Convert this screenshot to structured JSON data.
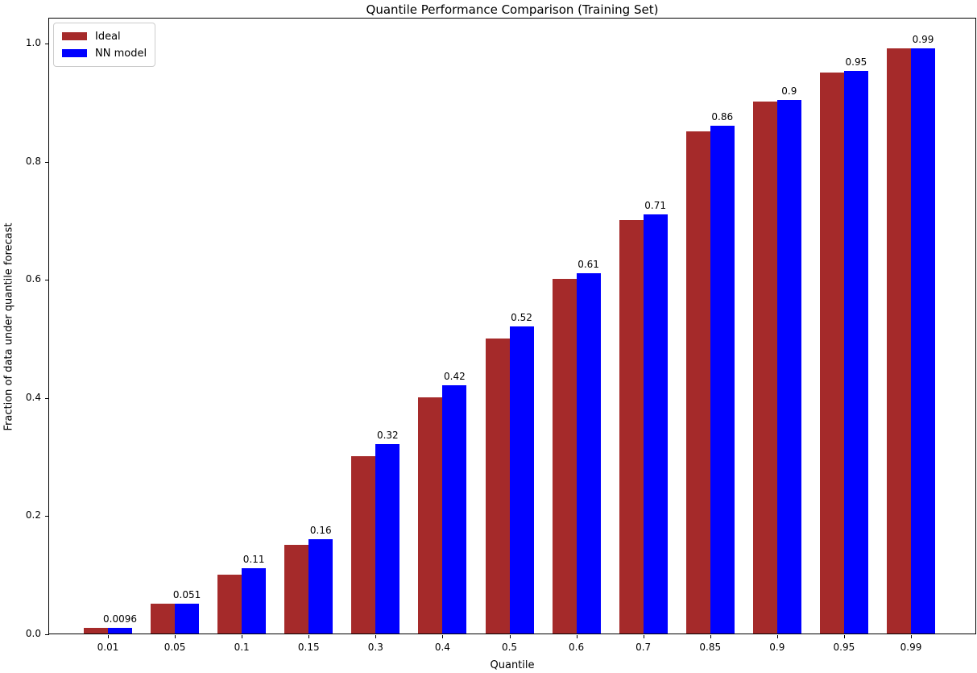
{
  "chart_data": {
    "type": "bar",
    "title": "Quantile Performance Comparison (Training Set)",
    "xlabel": "Quantile",
    "ylabel": "Fraction of data under quantile forecast",
    "categories": [
      "0.01",
      "0.05",
      "0.1",
      "0.15",
      "0.3",
      "0.4",
      "0.5",
      "0.6",
      "0.7",
      "0.85",
      "0.9",
      "0.95",
      "0.99"
    ],
    "series": [
      {
        "name": "Ideal",
        "color": "#A52A2A",
        "values": [
          0.01,
          0.05,
          0.1,
          0.15,
          0.3,
          0.4,
          0.5,
          0.6,
          0.7,
          0.85,
          0.9,
          0.95,
          0.99
        ]
      },
      {
        "name": "NN model",
        "color": "#0000FF",
        "values": [
          0.0096,
          0.051,
          0.11,
          0.16,
          0.32,
          0.42,
          0.52,
          0.61,
          0.71,
          0.86,
          0.903,
          0.952,
          0.991
        ]
      }
    ],
    "bar_labels": [
      "0.0096",
      "0.051",
      "0.11",
      "0.16",
      "0.32",
      "0.42",
      "0.52",
      "0.61",
      "0.71",
      "0.86",
      "0.9",
      "0.95",
      "0.99"
    ],
    "yticks": [
      "0.0",
      "0.2",
      "0.4",
      "0.6",
      "0.8",
      "1.0"
    ],
    "ylim": [
      0.0,
      1.044
    ],
    "grid": false,
    "legend_position": "upper left"
  }
}
